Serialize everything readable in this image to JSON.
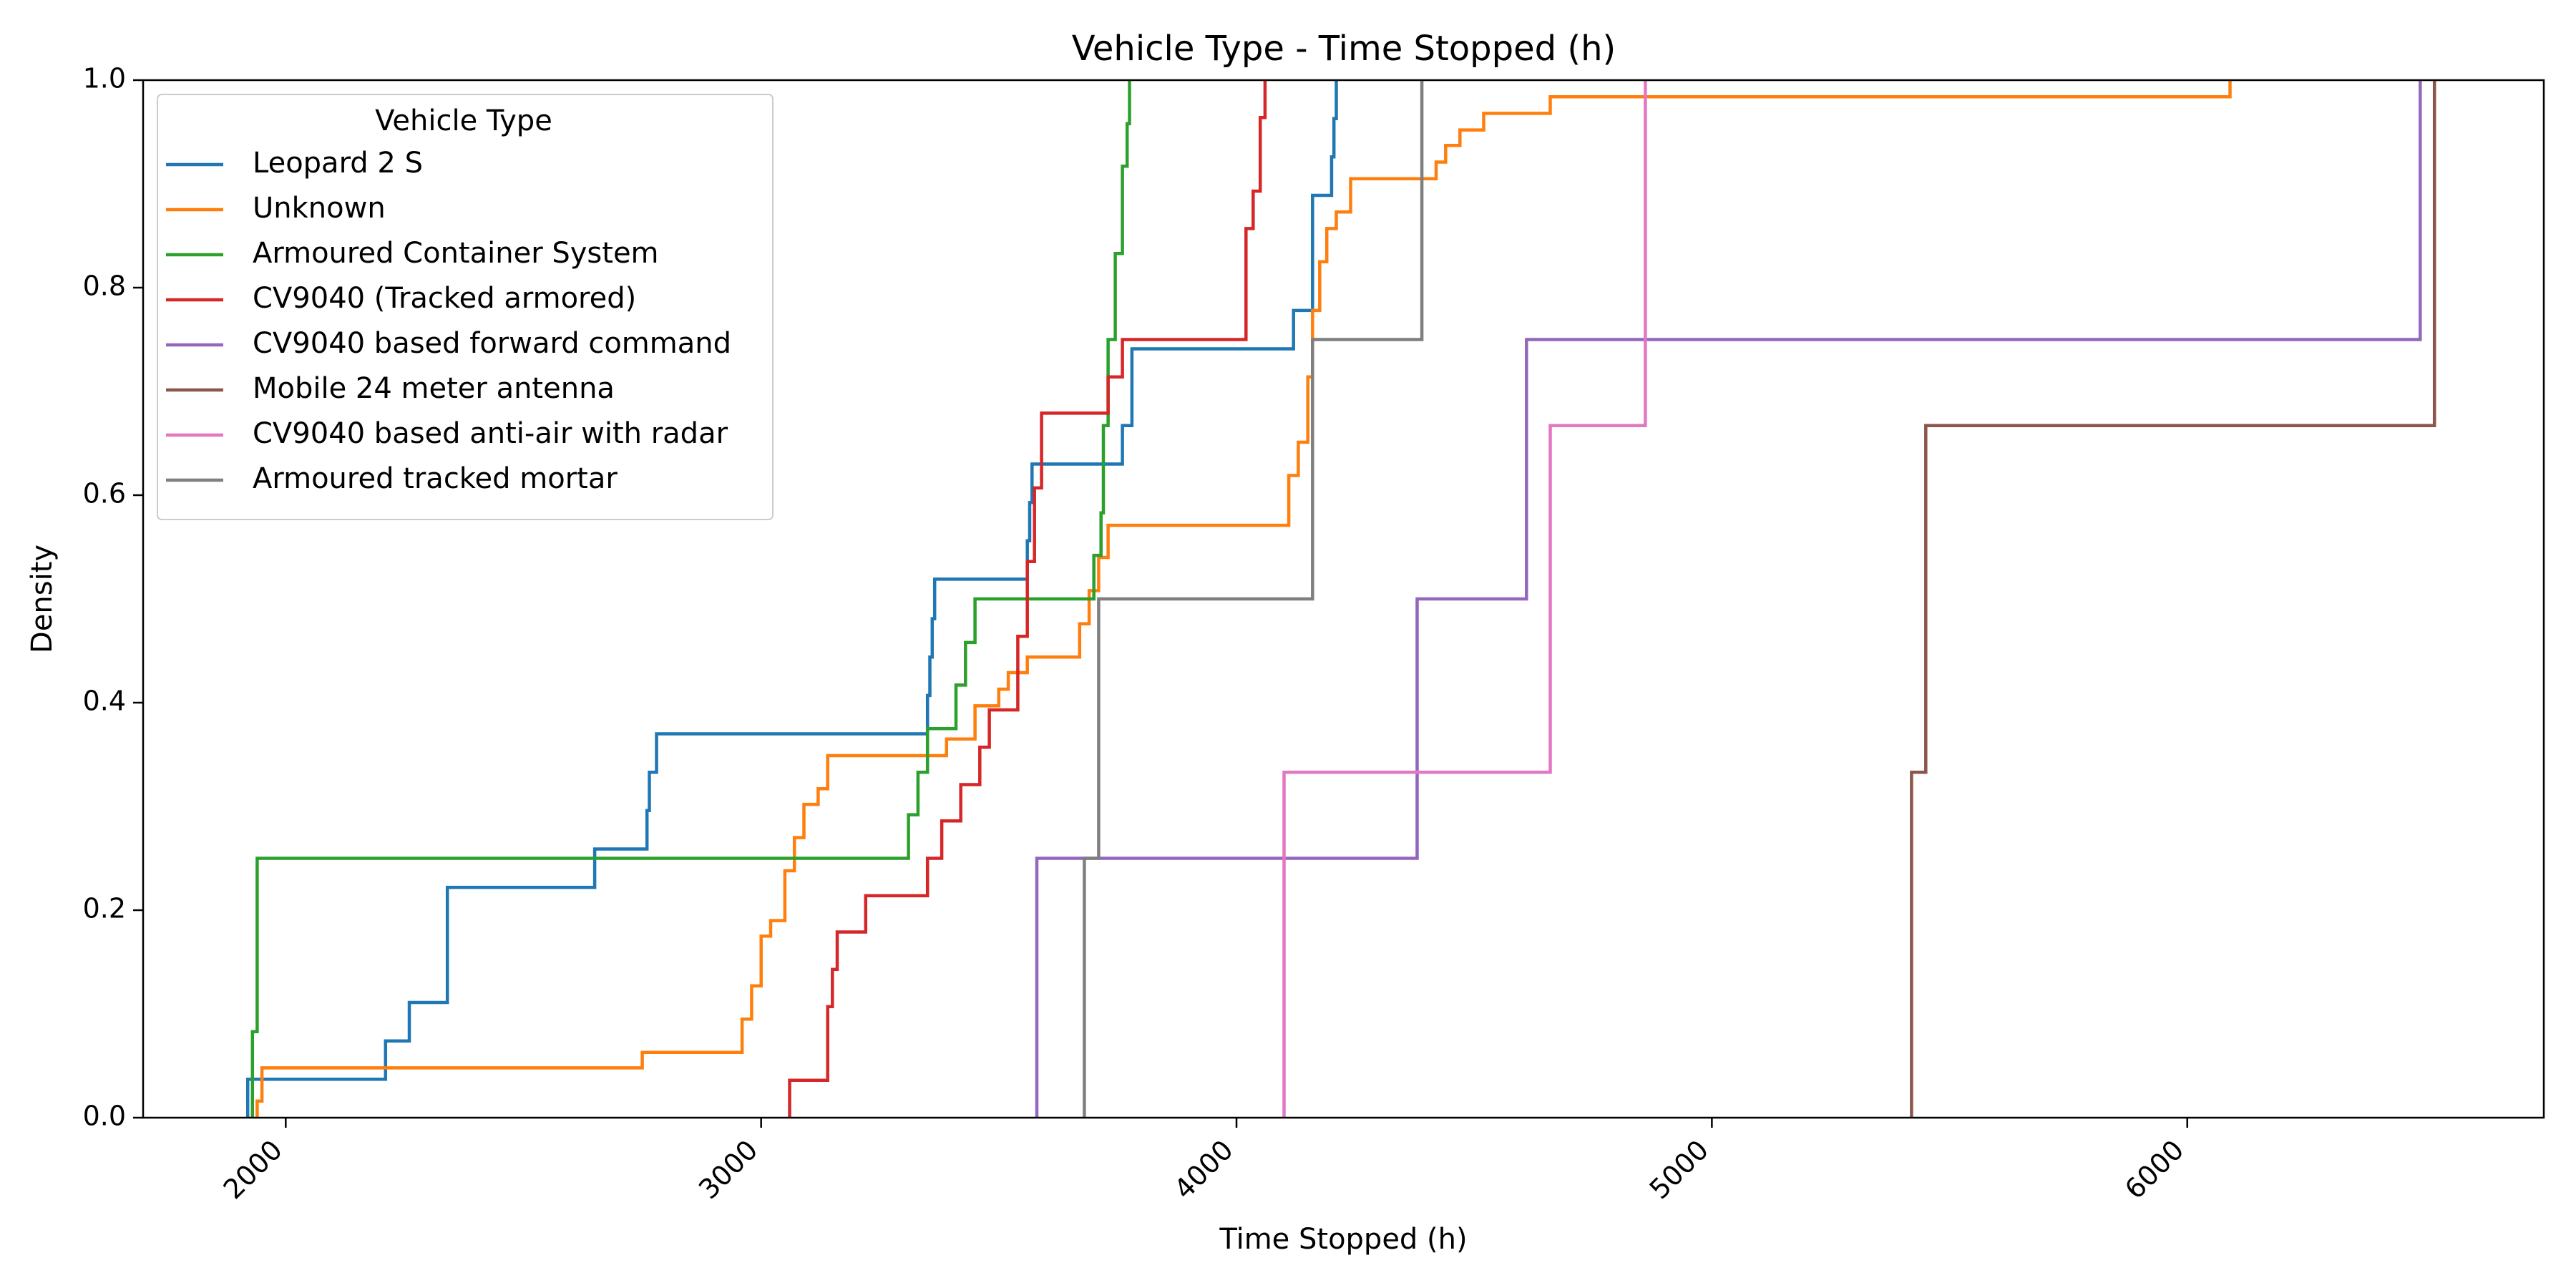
{
  "chart_data": {
    "type": "line",
    "subtype": "ecdf-step",
    "title": "Vehicle Type - Time Stopped (h)",
    "xlabel": "Time Stopped (h)",
    "ylabel": "Density",
    "xlim": [
      1700,
      6750
    ],
    "ylim": [
      0,
      1
    ],
    "x_ticks": [
      2000,
      3000,
      4000,
      5000,
      6000
    ],
    "x_tick_labels": [
      "2000",
      "3000",
      "4000",
      "5000",
      "6000"
    ],
    "y_ticks": [
      0.0,
      0.2,
      0.4,
      0.6,
      0.8,
      1.0
    ],
    "y_tick_labels": [
      "0.0",
      "0.2",
      "0.4",
      "0.6",
      "0.8",
      "1.0"
    ],
    "grid": false,
    "legend": {
      "title": "Vehicle Type",
      "position": "top-left"
    },
    "series": [
      {
        "name": "Leopard 2 S",
        "color": "#1f77b4",
        "points": [
          [
            1920,
            0
          ],
          [
            1920,
            0.037
          ],
          [
            2210,
            0.037
          ],
          [
            2210,
            0.074
          ],
          [
            2260,
            0.074
          ],
          [
            2260,
            0.111
          ],
          [
            2340,
            0.111
          ],
          [
            2340,
            0.222
          ],
          [
            2650,
            0.222
          ],
          [
            2650,
            0.259
          ],
          [
            2760,
            0.259
          ],
          [
            2760,
            0.296
          ],
          [
            2765,
            0.296
          ],
          [
            2765,
            0.333
          ],
          [
            2780,
            0.333
          ],
          [
            2780,
            0.37
          ],
          [
            3350,
            0.37
          ],
          [
            3350,
            0.407
          ],
          [
            3355,
            0.407
          ],
          [
            3355,
            0.444
          ],
          [
            3360,
            0.444
          ],
          [
            3360,
            0.481
          ],
          [
            3365,
            0.481
          ],
          [
            3365,
            0.519
          ],
          [
            3560,
            0.519
          ],
          [
            3560,
            0.556
          ],
          [
            3565,
            0.556
          ],
          [
            3565,
            0.593
          ],
          [
            3570,
            0.593
          ],
          [
            3570,
            0.63
          ],
          [
            3760,
            0.63
          ],
          [
            3760,
            0.667
          ],
          [
            3780,
            0.667
          ],
          [
            3780,
            0.741
          ],
          [
            4120,
            0.741
          ],
          [
            4120,
            0.778
          ],
          [
            4160,
            0.778
          ],
          [
            4160,
            0.889
          ],
          [
            4200,
            0.889
          ],
          [
            4200,
            0.926
          ],
          [
            4205,
            0.926
          ],
          [
            4205,
            0.963
          ],
          [
            4210,
            0.963
          ],
          [
            4210,
            1.0
          ]
        ]
      },
      {
        "name": "Unknown",
        "color": "#ff7f0e",
        "points": [
          [
            1940,
            0
          ],
          [
            1940,
            0.016
          ],
          [
            1950,
            0.016
          ],
          [
            1950,
            0.048
          ],
          [
            2750,
            0.048
          ],
          [
            2750,
            0.063
          ],
          [
            2960,
            0.063
          ],
          [
            2960,
            0.095
          ],
          [
            2980,
            0.095
          ],
          [
            2980,
            0.127
          ],
          [
            3000,
            0.127
          ],
          [
            3000,
            0.175
          ],
          [
            3020,
            0.175
          ],
          [
            3020,
            0.19
          ],
          [
            3050,
            0.19
          ],
          [
            3050,
            0.238
          ],
          [
            3070,
            0.238
          ],
          [
            3070,
            0.27
          ],
          [
            3090,
            0.27
          ],
          [
            3090,
            0.302
          ],
          [
            3120,
            0.302
          ],
          [
            3120,
            0.317
          ],
          [
            3140,
            0.317
          ],
          [
            3140,
            0.349
          ],
          [
            3390,
            0.349
          ],
          [
            3390,
            0.365
          ],
          [
            3450,
            0.365
          ],
          [
            3450,
            0.397
          ],
          [
            3500,
            0.397
          ],
          [
            3500,
            0.413
          ],
          [
            3520,
            0.413
          ],
          [
            3520,
            0.429
          ],
          [
            3560,
            0.429
          ],
          [
            3560,
            0.444
          ],
          [
            3670,
            0.444
          ],
          [
            3670,
            0.476
          ],
          [
            3690,
            0.476
          ],
          [
            3690,
            0.508
          ],
          [
            3710,
            0.508
          ],
          [
            3710,
            0.54
          ],
          [
            3730,
            0.54
          ],
          [
            3730,
            0.571
          ],
          [
            4110,
            0.571
          ],
          [
            4110,
            0.619
          ],
          [
            4130,
            0.619
          ],
          [
            4130,
            0.651
          ],
          [
            4150,
            0.651
          ],
          [
            4150,
            0.714
          ],
          [
            4160,
            0.714
          ],
          [
            4160,
            0.778
          ],
          [
            4175,
            0.778
          ],
          [
            4175,
            0.825
          ],
          [
            4190,
            0.825
          ],
          [
            4190,
            0.857
          ],
          [
            4210,
            0.857
          ],
          [
            4210,
            0.873
          ],
          [
            4240,
            0.873
          ],
          [
            4240,
            0.905
          ],
          [
            4420,
            0.905
          ],
          [
            4420,
            0.921
          ],
          [
            4440,
            0.921
          ],
          [
            4440,
            0.937
          ],
          [
            4470,
            0.937
          ],
          [
            4470,
            0.952
          ],
          [
            4520,
            0.952
          ],
          [
            4520,
            0.968
          ],
          [
            4660,
            0.968
          ],
          [
            4660,
            0.984
          ],
          [
            6090,
            0.984
          ],
          [
            6090,
            1.0
          ]
        ]
      },
      {
        "name": "Armoured Container System",
        "color": "#2ca02c",
        "points": [
          [
            1930,
            0
          ],
          [
            1930,
            0.083
          ],
          [
            1940,
            0.083
          ],
          [
            1940,
            0.25
          ],
          [
            3310,
            0.25
          ],
          [
            3310,
            0.292
          ],
          [
            3330,
            0.292
          ],
          [
            3330,
            0.333
          ],
          [
            3350,
            0.333
          ],
          [
            3350,
            0.375
          ],
          [
            3410,
            0.375
          ],
          [
            3410,
            0.417
          ],
          [
            3430,
            0.417
          ],
          [
            3430,
            0.458
          ],
          [
            3450,
            0.458
          ],
          [
            3450,
            0.5
          ],
          [
            3700,
            0.5
          ],
          [
            3700,
            0.542
          ],
          [
            3715,
            0.542
          ],
          [
            3715,
            0.583
          ],
          [
            3720,
            0.583
          ],
          [
            3720,
            0.667
          ],
          [
            3730,
            0.667
          ],
          [
            3730,
            0.75
          ],
          [
            3745,
            0.75
          ],
          [
            3745,
            0.833
          ],
          [
            3760,
            0.833
          ],
          [
            3760,
            0.917
          ],
          [
            3770,
            0.917
          ],
          [
            3770,
            0.958
          ],
          [
            3775,
            0.958
          ],
          [
            3775,
            1.0
          ]
        ]
      },
      {
        "name": "CV9040 (Tracked armored)",
        "color": "#d62728",
        "points": [
          [
            3060,
            0
          ],
          [
            3060,
            0.036
          ],
          [
            3140,
            0.036
          ],
          [
            3140,
            0.107
          ],
          [
            3150,
            0.107
          ],
          [
            3150,
            0.143
          ],
          [
            3160,
            0.143
          ],
          [
            3160,
            0.179
          ],
          [
            3220,
            0.179
          ],
          [
            3220,
            0.214
          ],
          [
            3350,
            0.214
          ],
          [
            3350,
            0.25
          ],
          [
            3380,
            0.25
          ],
          [
            3380,
            0.286
          ],
          [
            3420,
            0.286
          ],
          [
            3420,
            0.321
          ],
          [
            3460,
            0.321
          ],
          [
            3460,
            0.357
          ],
          [
            3480,
            0.357
          ],
          [
            3480,
            0.393
          ],
          [
            3540,
            0.393
          ],
          [
            3540,
            0.464
          ],
          [
            3560,
            0.464
          ],
          [
            3560,
            0.536
          ],
          [
            3575,
            0.536
          ],
          [
            3575,
            0.607
          ],
          [
            3590,
            0.607
          ],
          [
            3590,
            0.679
          ],
          [
            3730,
            0.679
          ],
          [
            3730,
            0.714
          ],
          [
            3760,
            0.714
          ],
          [
            3760,
            0.75
          ],
          [
            4020,
            0.75
          ],
          [
            4020,
            0.857
          ],
          [
            4035,
            0.857
          ],
          [
            4035,
            0.893
          ],
          [
            4050,
            0.893
          ],
          [
            4050,
            0.964
          ],
          [
            4060,
            0.964
          ],
          [
            4060,
            1.0
          ]
        ]
      },
      {
        "name": "CV9040 based forward command",
        "color": "#9467bd",
        "points": [
          [
            3580,
            0
          ],
          [
            3580,
            0.25
          ],
          [
            4380,
            0.25
          ],
          [
            4380,
            0.5
          ],
          [
            4610,
            0.5
          ],
          [
            4610,
            0.75
          ],
          [
            6490,
            0.75
          ],
          [
            6490,
            1.0
          ]
        ]
      },
      {
        "name": "Mobile 24 meter antenna",
        "color": "#8c564b",
        "points": [
          [
            5420,
            0
          ],
          [
            5420,
            0.333
          ],
          [
            5450,
            0.333
          ],
          [
            5450,
            0.667
          ],
          [
            6520,
            0.667
          ],
          [
            6520,
            1.0
          ]
        ]
      },
      {
        "name": "CV9040 based anti-air with radar",
        "color": "#e377c2",
        "points": [
          [
            4100,
            0
          ],
          [
            4100,
            0.333
          ],
          [
            4660,
            0.333
          ],
          [
            4660,
            0.667
          ],
          [
            4860,
            0.667
          ],
          [
            4860,
            1.0
          ]
        ]
      },
      {
        "name": "Armoured tracked mortar",
        "color": "#7f7f7f",
        "points": [
          [
            3680,
            0
          ],
          [
            3680,
            0.25
          ],
          [
            3710,
            0.25
          ],
          [
            3710,
            0.5
          ],
          [
            4160,
            0.5
          ],
          [
            4160,
            0.75
          ],
          [
            4390,
            0.75
          ],
          [
            4390,
            1.0
          ]
        ]
      }
    ]
  }
}
